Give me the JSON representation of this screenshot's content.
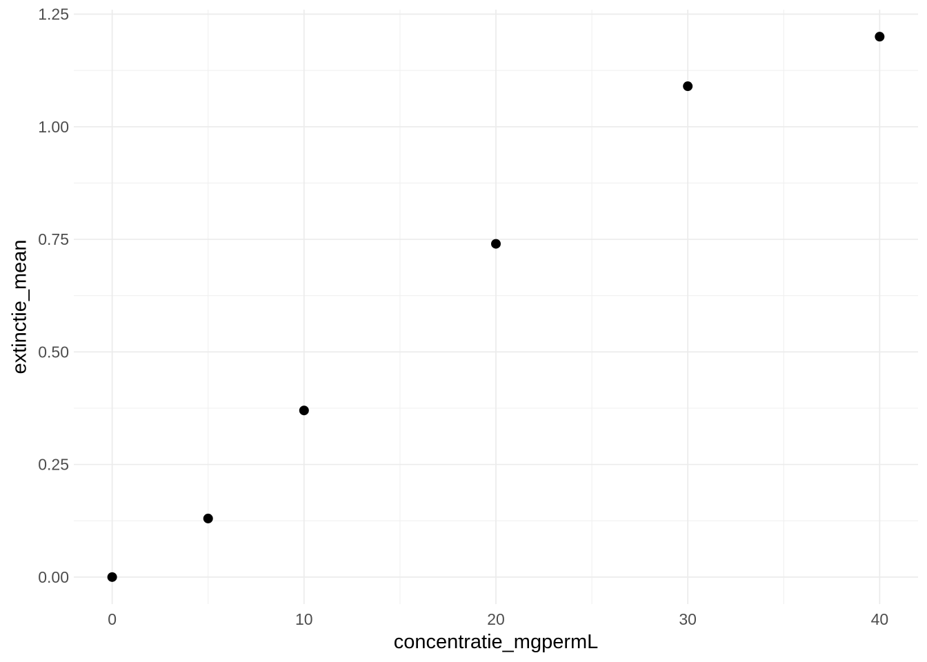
{
  "chart_data": {
    "type": "scatter",
    "title": "",
    "xlabel": "concentratie_mgpermL",
    "ylabel": "extinctie_mean",
    "x": [
      0,
      5,
      10,
      20,
      30,
      40
    ],
    "y": [
      0.0,
      0.13,
      0.37,
      0.74,
      1.09,
      1.2
    ],
    "xlim": [
      -2,
      42
    ],
    "ylim": [
      -0.06,
      1.26
    ],
    "x_major_ticks": [
      0,
      10,
      20,
      30,
      40
    ],
    "x_tick_labels": [
      "0",
      "10",
      "20",
      "30",
      "40"
    ],
    "x_minor_ticks": [
      5,
      15,
      25,
      35
    ],
    "y_major_ticks": [
      0,
      0.25,
      0.5,
      0.75,
      1,
      1.25
    ],
    "y_tick_labels": [
      "0.00",
      "0.25",
      "0.50",
      "0.75",
      "1.00",
      "1.25"
    ],
    "y_minor_ticks": [
      0.125,
      0.375,
      0.625,
      0.875,
      1.125
    ],
    "grid": "major+minor",
    "legend": "none",
    "point_color": "#000000",
    "point_radius": 7,
    "grid_major_color": "#EBEBEB",
    "grid_minor_color": "#F0F0F0",
    "tick_label_color": "#4D4D4D",
    "axis_title_color": "#000000",
    "background_color": "#FFFFFF"
  }
}
